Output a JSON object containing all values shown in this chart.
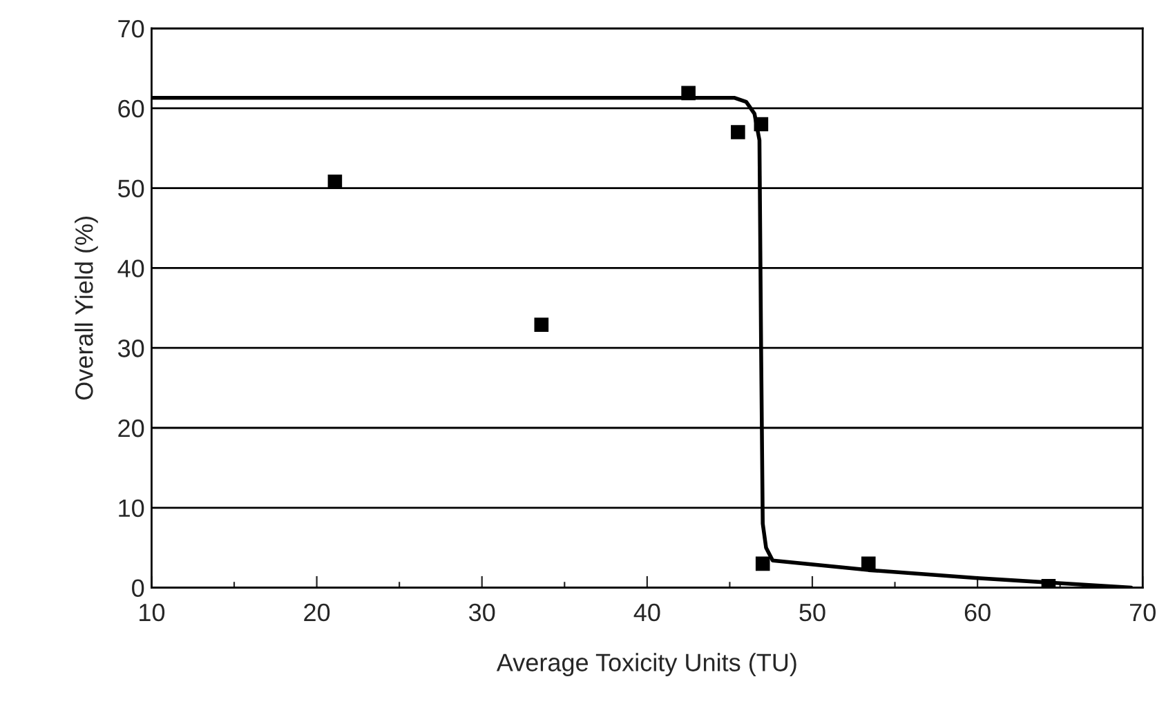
{
  "chart_data": {
    "type": "scatter",
    "xlabel": "Average Toxicity Units (TU)",
    "ylabel": "Overall Yield (%)",
    "xlim": [
      10,
      70
    ],
    "ylim": [
      0,
      70
    ],
    "xticks": [
      10,
      {
        "value": 15,
        "label": null
      },
      20,
      {
        "value": 25,
        "label": null
      },
      30,
      {
        "value": 35,
        "label": null
      },
      40,
      {
        "value": 45,
        "label": null
      },
      50,
      {
        "value": 55,
        "label": null
      },
      60,
      {
        "value": 65,
        "label": null
      },
      70
    ],
    "yticks": [
      0,
      10,
      20,
      30,
      40,
      50,
      60,
      70
    ],
    "grid": "y",
    "series": [
      {
        "color": "#000000",
        "marker": "square",
        "x": [
          21.1,
          33.6,
          42.5,
          45.5,
          46.9,
          47.0,
          53.4,
          64.3
        ],
        "values": [
          50.8,
          32.9,
          61.9,
          57.0,
          58.0,
          3.0,
          3.0,
          0.2
        ]
      },
      {
        "type": "line",
        "color": "#000000",
        "marker": "none",
        "line_style": "solid",
        "x": [
          10,
          30,
          45.3,
          46.0,
          46.5,
          46.8,
          46.9,
          47.0,
          47.2,
          47.6,
          53.4,
          60,
          69.3
        ],
        "values": [
          61.3,
          61.3,
          61.3,
          60.8,
          59.3,
          56,
          30,
          8,
          5.0,
          3.4,
          2.2,
          1.2,
          0
        ]
      }
    ]
  }
}
